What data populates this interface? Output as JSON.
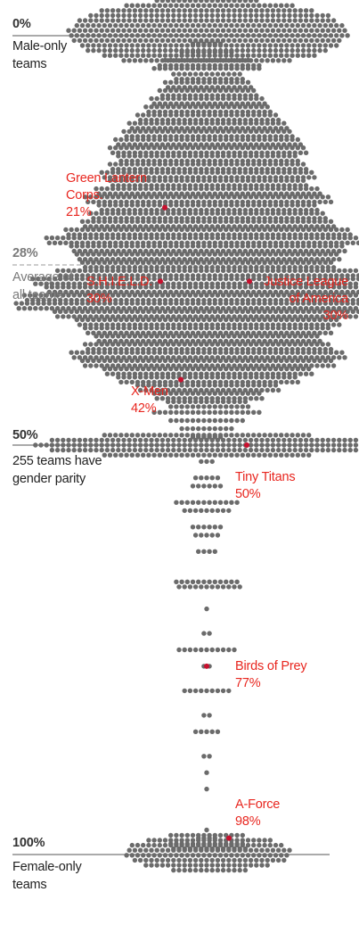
{
  "chart_data": {
    "type": "scatter",
    "title": "",
    "xlabel": "",
    "ylabel": "",
    "ylim": [
      0,
      100
    ],
    "reference_lines": [
      {
        "value": 0,
        "label": "0%",
        "note": "Male-only teams"
      },
      {
        "value": 28,
        "label": "28%",
        "note": "Average of all teams",
        "style": "dashed"
      },
      {
        "value": 50,
        "label": "50%",
        "note": "255 teams have gender parity"
      },
      {
        "value": 100,
        "label": "100%",
        "note": "Female-only teams"
      }
    ],
    "highlights": [
      {
        "name": "Green Lantern Corps.",
        "value_label": "21%",
        "y": 21
      },
      {
        "name": "S.H.I.E.L.D.",
        "value_label": "30%",
        "y": 30
      },
      {
        "name": "Justice League of America",
        "value_label": "30%",
        "y": 30
      },
      {
        "name": "X-Men",
        "value_label": "42%",
        "y": 42
      },
      {
        "name": "Tiny Titans",
        "value_label": "50%",
        "y": 50
      },
      {
        "name": "Birds of Prey",
        "value_label": "77%",
        "y": 77
      },
      {
        "name": "A-Force",
        "value_label": "98%",
        "y": 98
      }
    ],
    "series": [
      {
        "values": [
          {
            "y": 0,
            "count": 560
          },
          {
            "y": 1,
            "count": 6
          },
          {
            "y": 2,
            "count": 10
          },
          {
            "y": 3,
            "count": 16
          },
          {
            "y": 4,
            "count": 20
          },
          {
            "y": 5,
            "count": 26
          },
          {
            "y": 6,
            "count": 32
          },
          {
            "y": 7,
            "count": 36
          },
          {
            "y": 8,
            "count": 42
          },
          {
            "y": 9,
            "count": 46
          },
          {
            "y": 10,
            "count": 52
          },
          {
            "y": 11,
            "count": 58
          },
          {
            "y": 12,
            "count": 62
          },
          {
            "y": 13,
            "count": 68
          },
          {
            "y": 14,
            "count": 72
          },
          {
            "y": 15,
            "count": 66
          },
          {
            "y": 16,
            "count": 72
          },
          {
            "y": 17,
            "count": 78
          },
          {
            "y": 18,
            "count": 72
          },
          {
            "y": 19,
            "count": 82
          },
          {
            "y": 20,
            "count": 90
          },
          {
            "y": 21,
            "count": 80
          },
          {
            "y": 22,
            "count": 86
          },
          {
            "y": 23,
            "count": 92
          },
          {
            "y": 24,
            "count": 104
          },
          {
            "y": 25,
            "count": 118
          },
          {
            "y": 26,
            "count": 100
          },
          {
            "y": 27,
            "count": 96
          },
          {
            "y": 28,
            "count": 92
          },
          {
            "y": 29,
            "count": 110
          },
          {
            "y": 30,
            "count": 128
          },
          {
            "y": 31,
            "count": 118
          },
          {
            "y": 32,
            "count": 134
          },
          {
            "y": 33,
            "count": 140
          },
          {
            "y": 34,
            "count": 112
          },
          {
            "y": 35,
            "count": 96
          },
          {
            "y": 36,
            "count": 90
          },
          {
            "y": 37,
            "count": 82
          },
          {
            "y": 38,
            "count": 90
          },
          {
            "y": 39,
            "count": 100
          },
          {
            "y": 40,
            "count": 92
          },
          {
            "y": 41,
            "count": 76
          },
          {
            "y": 42,
            "count": 66
          },
          {
            "y": 43,
            "count": 52
          },
          {
            "y": 44,
            "count": 40
          },
          {
            "y": 45,
            "count": 30
          },
          {
            "y": 46,
            "count": 20
          },
          {
            "y": 47,
            "count": 14
          },
          {
            "y": 48,
            "count": 10
          },
          {
            "y": 49,
            "count": 6
          },
          {
            "y": 50,
            "count": 255
          },
          {
            "y": 52,
            "count": 3
          },
          {
            "y": 54,
            "count": 5
          },
          {
            "y": 55,
            "count": 6
          },
          {
            "y": 57,
            "count": 12
          },
          {
            "y": 58,
            "count": 9
          },
          {
            "y": 60,
            "count": 6
          },
          {
            "y": 61,
            "count": 5
          },
          {
            "y": 63,
            "count": 4
          },
          {
            "y": 67,
            "count": 24
          },
          {
            "y": 70,
            "count": 1
          },
          {
            "y": 73,
            "count": 2
          },
          {
            "y": 75,
            "count": 11
          },
          {
            "y": 77,
            "count": 2
          },
          {
            "y": 80,
            "count": 9
          },
          {
            "y": 83,
            "count": 2
          },
          {
            "y": 85,
            "count": 5
          },
          {
            "y": 88,
            "count": 2
          },
          {
            "y": 90,
            "count": 1
          },
          {
            "y": 92,
            "count": 1
          },
          {
            "y": 97,
            "count": 1
          },
          {
            "y": 98,
            "count": 4
          },
          {
            "y": 99,
            "count": 28
          },
          {
            "y": 100,
            "count": 190
          }
        ]
      }
    ]
  },
  "colors": {
    "dot": "#6b6b6b",
    "highlight": "#c8102e",
    "highlight_text": "#e8261f"
  }
}
